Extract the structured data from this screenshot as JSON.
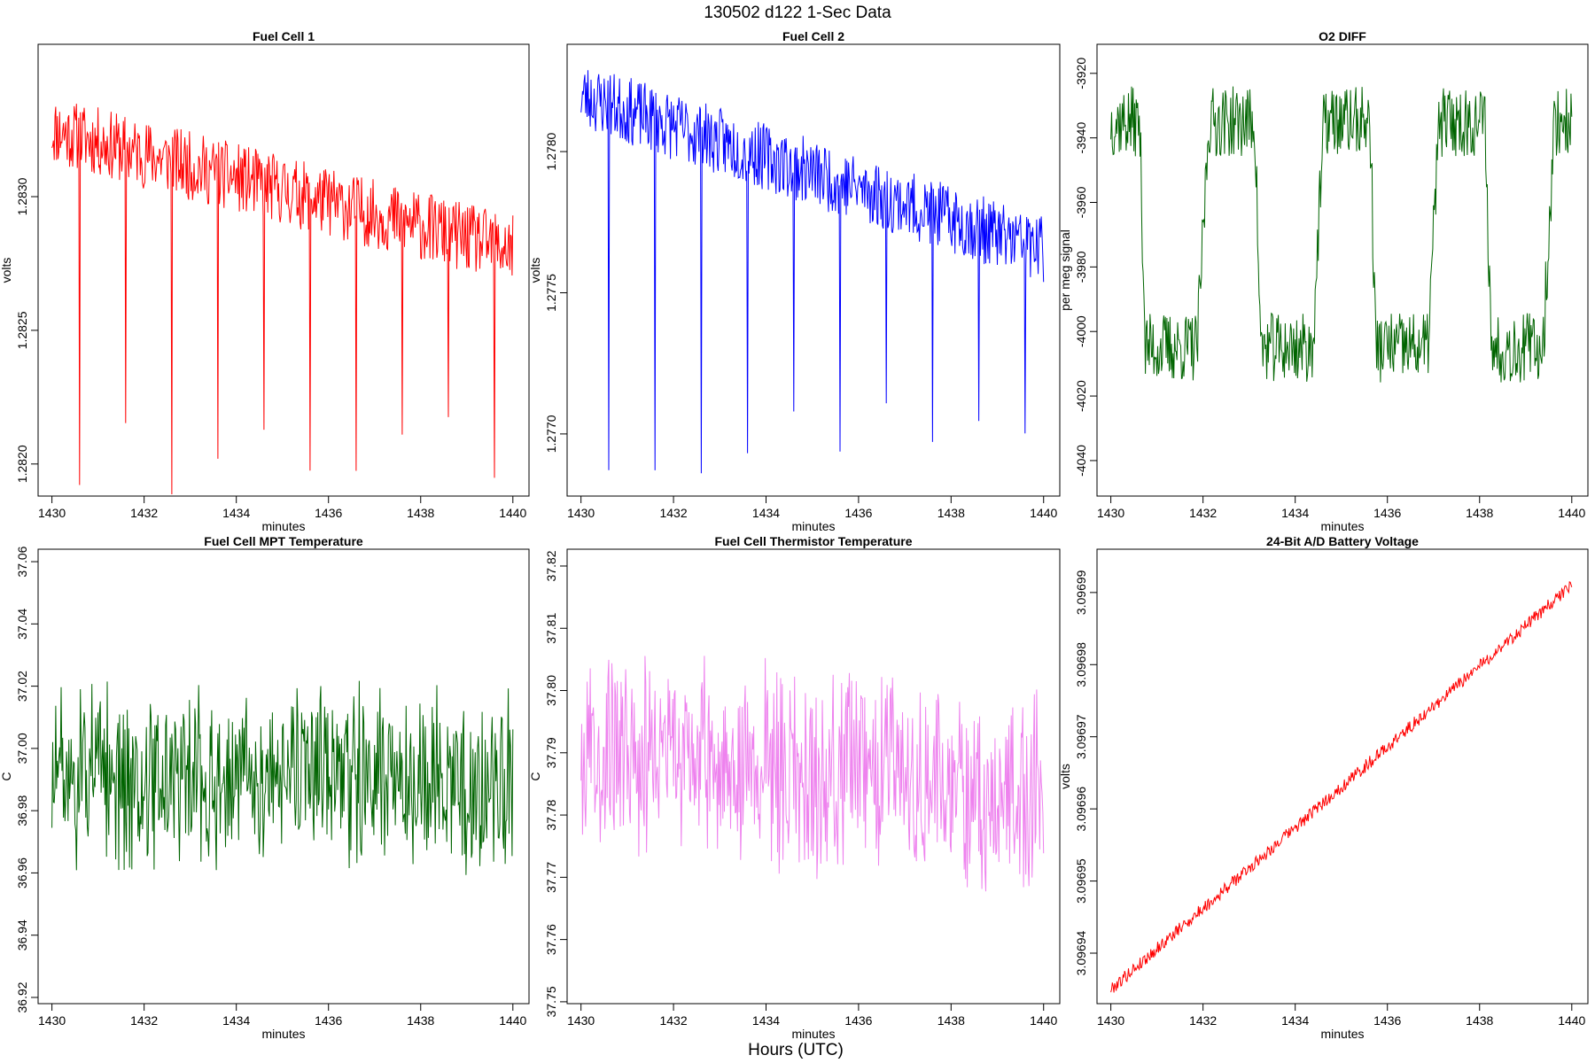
{
  "figure": {
    "suptitle": "130502   d122   1-Sec Data",
    "xlabel_global": "Hours (UTC)"
  },
  "chart_data": [
    {
      "type": "line",
      "title": "Fuel Cell 1",
      "xlabel": "minutes",
      "ylabel": "volts",
      "color": "#ff0000",
      "xlim": [
        1429.7,
        1440.35
      ],
      "ylim": [
        1.28188,
        1.28357
      ],
      "xticks": [
        1430,
        1432,
        1434,
        1436,
        1438,
        1440
      ],
      "xtick_labels": [
        "1430",
        "1432",
        "1434",
        "1436",
        "1438",
        "1440"
      ],
      "yticks": [
        1.282,
        1.2825,
        1.283
      ],
      "ytick_labels": [
        "1.2820",
        "1.2825",
        "1.2830"
      ],
      "signal": {
        "kind": "trend",
        "start": 1.28325,
        "end": 1.2828,
        "noise": 0.00013,
        "spikes": [
          1430.6,
          1431.6,
          1432.6,
          1433.6,
          1434.6,
          1435.6,
          1436.6,
          1437.6,
          1438.6,
          1439.6
        ],
        "spike_low": 1.28185,
        "seed": 11
      }
    },
    {
      "type": "line",
      "title": "Fuel Cell 2",
      "xlabel": "minutes",
      "ylabel": "volts",
      "color": "#0000ff",
      "xlim": [
        1429.7,
        1440.35
      ],
      "ylim": [
        1.27678,
        1.27838
      ],
      "xticks": [
        1430,
        1432,
        1434,
        1436,
        1438,
        1440
      ],
      "xtick_labels": [
        "1430",
        "1432",
        "1434",
        "1436",
        "1438",
        "1440"
      ],
      "yticks": [
        1.277,
        1.2775,
        1.278
      ],
      "ytick_labels": [
        "1.2770",
        "1.2775",
        "1.2780"
      ],
      "signal": {
        "kind": "trend",
        "start": 1.2782,
        "end": 1.27765,
        "noise": 0.00012,
        "spikes": [
          1430.6,
          1431.6,
          1432.6,
          1433.6,
          1434.6,
          1435.6,
          1436.6,
          1437.6,
          1438.6,
          1439.6
        ],
        "spike_low": 1.27685,
        "seed": 23
      }
    },
    {
      "type": "line",
      "title": "O2 DIFF",
      "xlabel": "minutes",
      "ylabel": "per meg signal",
      "color": "#006400",
      "xlim": [
        1429.7,
        1440.35
      ],
      "ylim": [
        -4051,
        -3911
      ],
      "xticks": [
        1430,
        1432,
        1434,
        1436,
        1438,
        1440
      ],
      "xtick_labels": [
        "1430",
        "1432",
        "1434",
        "1436",
        "1438",
        "1440"
      ],
      "yticks": [
        -4040,
        -4020,
        -4000,
        -3980,
        -3960,
        -3940,
        -3920
      ],
      "ytick_labels": [
        "-4040",
        "-4020",
        "-4000",
        "-3980",
        "-3960",
        "-3940",
        "-3920"
      ],
      "signal": {
        "kind": "square",
        "high": -3935,
        "low": -4005,
        "period": 2.5,
        "phase": 1430.75,
        "noise": 11,
        "seed": 37
      }
    },
    {
      "type": "line",
      "title": "Fuel Cell MPT Temperature",
      "xlabel": "minutes",
      "ylabel": "C",
      "color": "#006400",
      "xlim": [
        1429.7,
        1440.35
      ],
      "ylim": [
        36.918,
        37.064
      ],
      "xticks": [
        1430,
        1432,
        1434,
        1436,
        1438,
        1440
      ],
      "xtick_labels": [
        "1430",
        "1432",
        "1434",
        "1436",
        "1438",
        "1440"
      ],
      "yticks": [
        36.92,
        36.94,
        36.96,
        36.98,
        37.0,
        37.02,
        37.04,
        37.06
      ],
      "ytick_labels": [
        "36.92",
        "36.94",
        "36.96",
        "36.98",
        "37.00",
        "37.02",
        "37.04",
        "37.06"
      ],
      "signal": {
        "kind": "noise",
        "mean": 36.99,
        "amp": 0.024,
        "seed": 51
      }
    },
    {
      "type": "line",
      "title": "Fuel Cell Thermistor Temperature",
      "xlabel": "minutes",
      "ylabel": "C",
      "color": "#ee82ee",
      "xlim": [
        1429.7,
        1440.35
      ],
      "ylim": [
        37.7497,
        37.8227
      ],
      "xticks": [
        1430,
        1432,
        1434,
        1436,
        1438,
        1440
      ],
      "xtick_labels": [
        "1430",
        "1432",
        "1434",
        "1436",
        "1438",
        "1440"
      ],
      "yticks": [
        37.75,
        37.76,
        37.77,
        37.78,
        37.79,
        37.8,
        37.81,
        37.82
      ],
      "ytick_labels": [
        "37.75",
        "37.76",
        "37.77",
        "37.78",
        "37.79",
        "37.80",
        "37.81",
        "37.82"
      ],
      "signal": {
        "kind": "trendnoise",
        "start": 37.791,
        "end": 37.783,
        "amp": 0.013,
        "seed": 67
      }
    },
    {
      "type": "line",
      "title": "24-Bit A/D Battery Voltage",
      "xlabel": "minutes",
      "ylabel": "volts",
      "color": "#ff0000",
      "xlim": [
        1429.7,
        1440.35
      ],
      "ylim": [
        3.096933,
        3.096996
      ],
      "xticks": [
        1430,
        1432,
        1434,
        1436,
        1438,
        1440
      ],
      "xtick_labels": [
        "1430",
        "1432",
        "1434",
        "1436",
        "1438",
        "1440"
      ],
      "yticks": [
        3.09694,
        3.09695,
        3.09696,
        3.09697,
        3.09698,
        3.09699
      ],
      "ytick_labels": [
        "3.09694",
        "3.09695",
        "3.09696",
        "3.09697",
        "3.09698",
        "3.09699"
      ],
      "signal": {
        "kind": "ramp",
        "start": 3.096935,
        "end": 3.096991,
        "noise": 9e-07,
        "seed": 79
      }
    }
  ]
}
